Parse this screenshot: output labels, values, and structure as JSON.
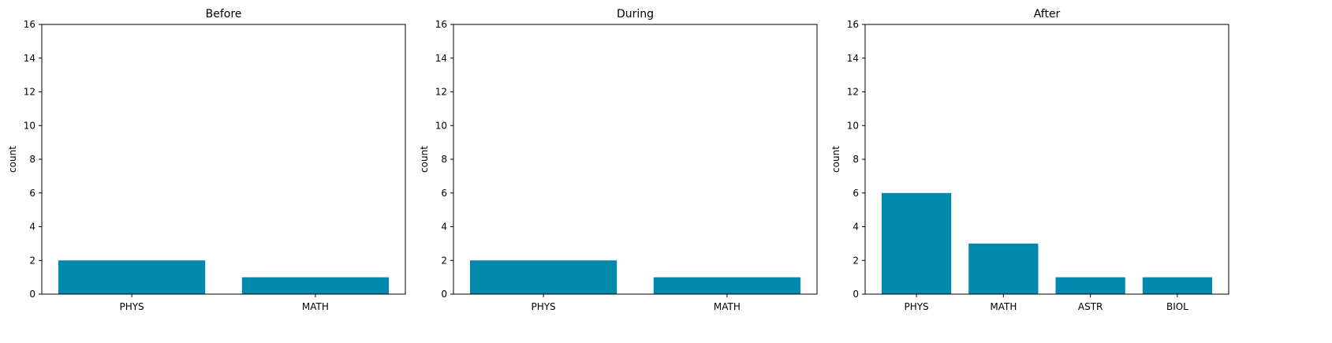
{
  "chart_data": [
    {
      "type": "bar",
      "title": "Before",
      "ylabel": "count",
      "categories": [
        "PHYS",
        "MATH"
      ],
      "values": [
        2,
        1
      ],
      "ylim": [
        0,
        16
      ],
      "yticks": [
        0,
        2,
        4,
        6,
        8,
        10,
        12,
        14,
        16
      ],
      "bar_color": "#0088AD",
      "grid": false
    },
    {
      "type": "bar",
      "title": "During",
      "ylabel": "count",
      "categories": [
        "PHYS",
        "MATH"
      ],
      "values": [
        2,
        1
      ],
      "ylim": [
        0,
        16
      ],
      "yticks": [
        0,
        2,
        4,
        6,
        8,
        10,
        12,
        14,
        16
      ],
      "bar_color": "#0088AD",
      "grid": false
    },
    {
      "type": "bar",
      "title": "After",
      "ylabel": "count",
      "categories": [
        "PHYS",
        "MATH",
        "ASTR",
        "BIOL"
      ],
      "values": [
        6,
        3,
        1,
        1
      ],
      "ylim": [
        0,
        16
      ],
      "yticks": [
        0,
        2,
        4,
        6,
        8,
        10,
        12,
        14,
        16
      ],
      "bar_color": "#0088AD",
      "grid": false
    }
  ]
}
